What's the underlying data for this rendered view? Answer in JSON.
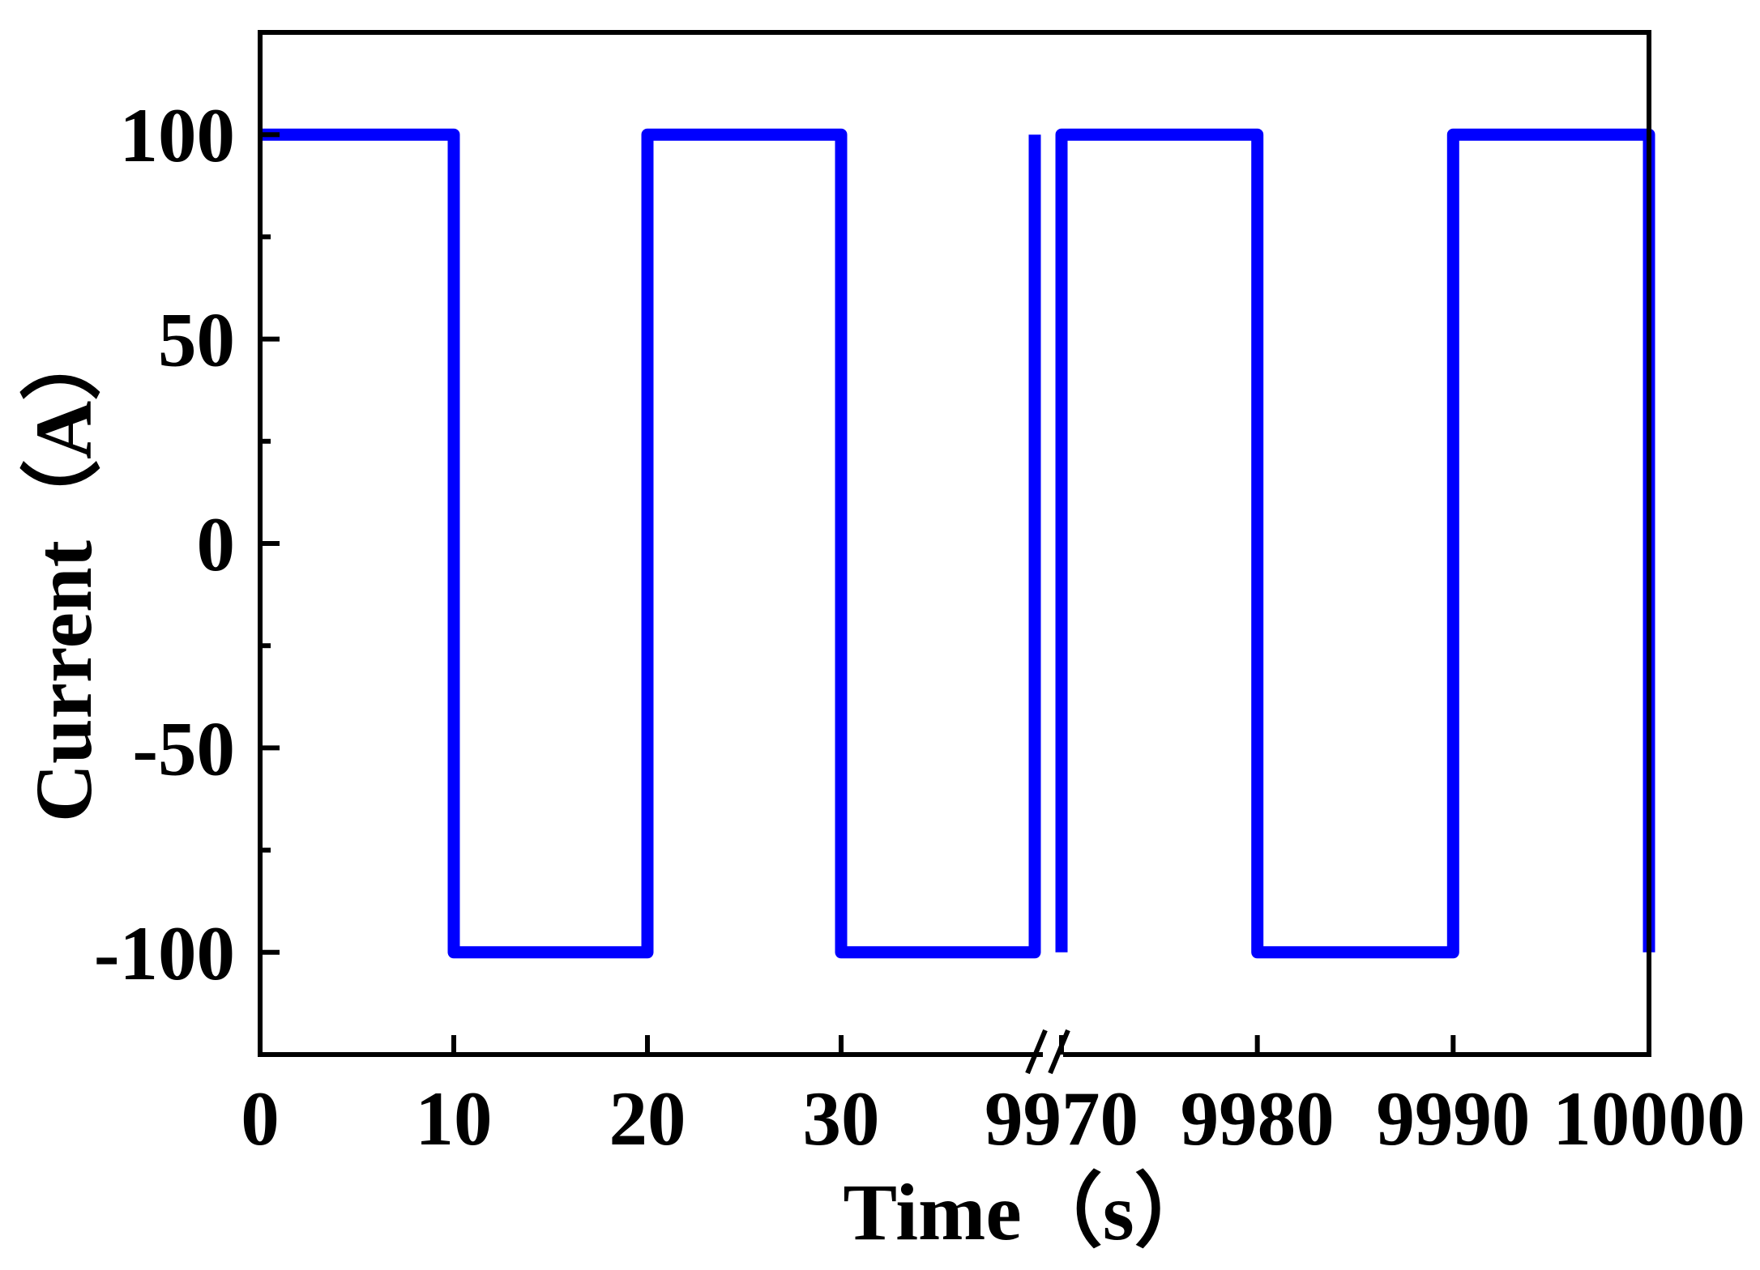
{
  "chart_data": {
    "type": "line",
    "xlabel": "Time（s）",
    "ylabel": "Current（A）",
    "ylim": [
      -125,
      125
    ],
    "y_ticks": [
      100,
      50,
      0,
      -50,
      -100
    ],
    "y_tick_labels": [
      "100",
      "50",
      "0",
      "-50",
      "-100"
    ],
    "x_axis_broken": true,
    "x_segments": [
      {
        "xlim": [
          0,
          40
        ],
        "ticks": [
          0,
          10,
          20,
          30
        ]
      },
      {
        "xlim": [
          9970,
          10000
        ],
        "ticks": [
          9970,
          9980,
          9990,
          10000
        ]
      }
    ],
    "x_tick_labels": [
      "0",
      "10",
      "20",
      "30",
      "9970",
      "9980",
      "9990",
      "10000"
    ],
    "series": [
      {
        "color": "#0000ff",
        "segments": [
          {
            "x": [
              0,
              10,
              10,
              20,
              20,
              30,
              30,
              40,
              40
            ],
            "y": [
              100,
              100,
              -100,
              -100,
              100,
              100,
              -100,
              -100,
              100
            ]
          },
          {
            "x": [
              9970,
              9970,
              9980,
              9980,
              9990,
              9990,
              10000,
              10000
            ],
            "y": [
              -100,
              100,
              100,
              -100,
              -100,
              100,
              100,
              -100
            ]
          }
        ]
      }
    ],
    "grid": false,
    "legend": "none"
  }
}
